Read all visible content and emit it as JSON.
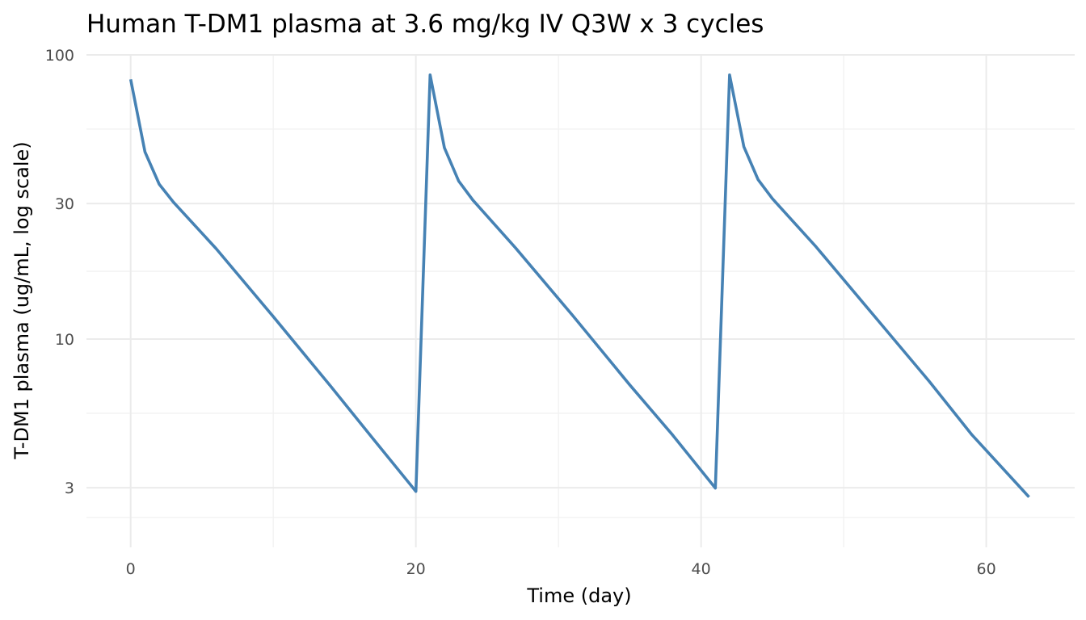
{
  "chart_data": {
    "type": "line",
    "title": "Human T-DM1 plasma at 3.6 mg/kg IV Q3W x 3 cycles",
    "xlabel": "Time (day)",
    "ylabel": "T-DM1 plasma (ug/mL, log scale)",
    "xlim": [
      -3.1,
      66.2
    ],
    "ylim": [
      1.85,
      100
    ],
    "y_scale": "log10",
    "x_ticks": [
      0,
      20,
      40,
      60
    ],
    "x_tick_labels": [
      "0",
      "20",
      "40",
      "60"
    ],
    "x_minor_ticks": [
      10,
      30,
      50
    ],
    "y_ticks": [
      3,
      10,
      30,
      100
    ],
    "y_tick_labels": [
      "3",
      "10",
      "30",
      "100"
    ],
    "y_minor_ticks": [
      5.48,
      17.32,
      54.8
    ],
    "grid": true,
    "colors": {
      "line": "#4682b4",
      "grid": "#ebebeb",
      "background": "#ffffff"
    },
    "series": [
      {
        "x": [
          0,
          1,
          2,
          3,
          6,
          10,
          14,
          17,
          20,
          21,
          22,
          23,
          24,
          27,
          31,
          35,
          38,
          41,
          42,
          43,
          44,
          45,
          48,
          52,
          56,
          59,
          63
        ],
        "y": [
          82,
          45.6,
          35.1,
          30.3,
          20.8,
          12.0,
          6.85,
          4.46,
          2.91,
          85,
          47.1,
          36.0,
          30.8,
          20.9,
          12.1,
          6.9,
          4.6,
          2.99,
          85,
          47.5,
          36.4,
          31.2,
          21.3,
          12.3,
          7.1,
          4.6,
          2.78
        ]
      }
    ]
  }
}
